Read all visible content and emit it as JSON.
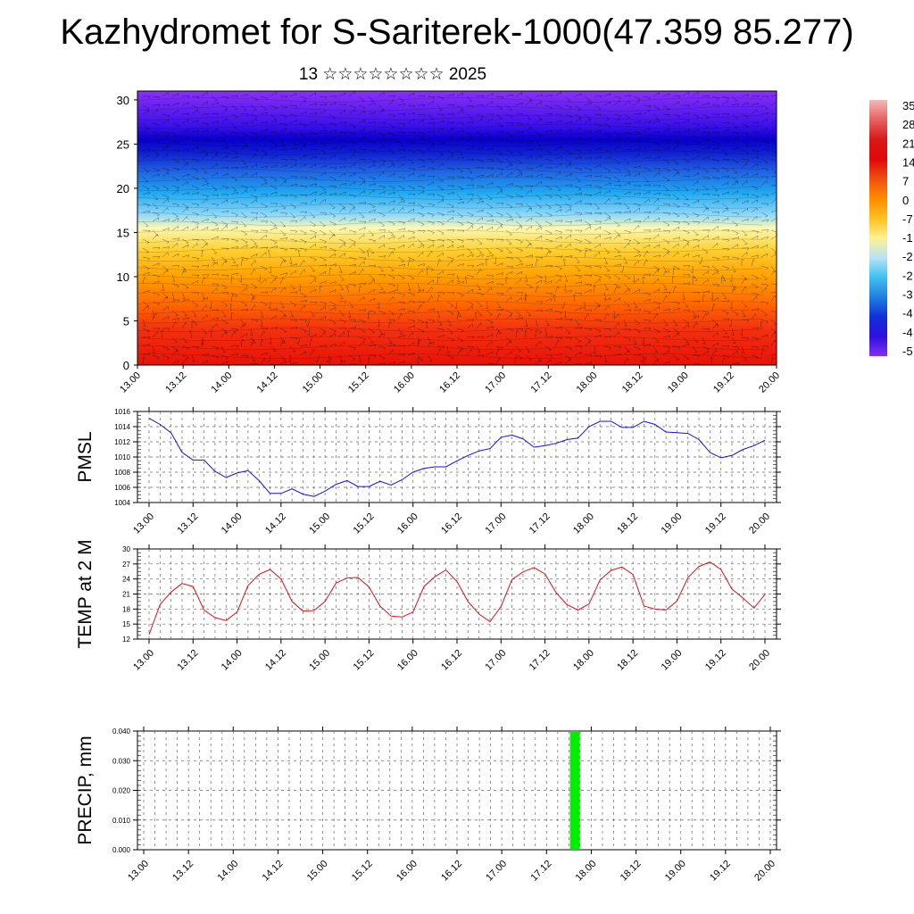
{
  "title": "Kazhydromet for S-Sariterek-1000(47.359 85.277)",
  "subtitle": "13 ☆☆☆☆☆☆☆☆ 2025",
  "colors": {
    "pmsl_line": "#1010dd",
    "temp_line": "#dd1010",
    "precip_bar": "#00ee00",
    "grid": "#555555"
  },
  "chart_data": [
    {
      "type": "heatmap",
      "description_of_variable": "",
      "x_ticks": [
        "13.00",
        "13.12",
        "14.00",
        "14.12",
        "15.00",
        "15.12",
        "16.00",
        "16.12",
        "17.00",
        "17.12",
        "18.00",
        "18.12",
        "19.00",
        "19.12",
        "20.00"
      ],
      "y_ticks": [
        "0",
        "5",
        "10",
        "15",
        "20",
        "25",
        "30"
      ],
      "ylim": [
        0,
        31
      ],
      "colorbar_labels": [
        "35",
        "28",
        "21",
        "14",
        "7",
        "0",
        "-7",
        "-1",
        "-2",
        "-2",
        "-3",
        "-4",
        "-4",
        "-5"
      ],
      "colorbar_colors": [
        "#f2b8b8",
        "#e86060",
        "#d81818",
        "#e00808",
        "#f05010",
        "#ff8c00",
        "#ffc020",
        "#fff090",
        "#b8e4f8",
        "#40c0f0",
        "#2080e0",
        "#1030d8",
        "#3010e0",
        "#8030f0"
      ],
      "bands": [
        {
          "z": 0,
          "color": "#e81208"
        },
        {
          "z": 4,
          "color": "#f23010"
        },
        {
          "z": 7,
          "color": "#ff6a00"
        },
        {
          "z": 10,
          "color": "#ffa000"
        },
        {
          "z": 13,
          "color": "#ffd030"
        },
        {
          "z": 15.5,
          "color": "#fff8b0"
        },
        {
          "z": 17,
          "color": "#90d8f8"
        },
        {
          "z": 19.5,
          "color": "#20a8f0"
        },
        {
          "z": 22,
          "color": "#2060e0"
        },
        {
          "z": 24,
          "color": "#1020d0"
        },
        {
          "z": 25.5,
          "color": "#0800c8"
        },
        {
          "z": 27,
          "color": "#3a10e8"
        },
        {
          "z": 31,
          "color": "#8a30f8"
        }
      ]
    },
    {
      "type": "line",
      "ylabel": "PMSL",
      "ylim": [
        1004,
        1016
      ],
      "y_ticks": [
        "1004",
        "1006",
        "1008",
        "1010",
        "1012",
        "1014",
        "1016"
      ],
      "x_ticks": [
        "13.00",
        "13.12",
        "14.00",
        "14.12",
        "15.00",
        "15.12",
        "16.00",
        "16.12",
        "17.00",
        "17.12",
        "18.00",
        "18.12",
        "19.00",
        "19.12",
        "20.00"
      ],
      "values": [
        1015.1,
        1014.3,
        1013.2,
        1010.6,
        1009.6,
        1009.6,
        1008.1,
        1007.3,
        1007.9,
        1008.2,
        1006.9,
        1005.2,
        1005.2,
        1005.8,
        1005.1,
        1004.8,
        1005.5,
        1006.4,
        1006.9,
        1006.1,
        1006.1,
        1006.8,
        1006.3,
        1007.0,
        1008.0,
        1008.5,
        1008.7,
        1008.7,
        1009.5,
        1010.2,
        1010.8,
        1011.1,
        1012.6,
        1012.9,
        1012.4,
        1011.3,
        1011.5,
        1011.8,
        1012.3,
        1012.5,
        1014.0,
        1014.7,
        1014.7,
        1013.9,
        1013.9,
        1014.7,
        1014.3,
        1013.3,
        1013.2,
        1013.1,
        1012.3,
        1010.6,
        1009.9,
        1010.2,
        1011.0,
        1011.5,
        1012.2
      ]
    },
    {
      "type": "line",
      "ylabel": "TEMP at 2 M",
      "ylim": [
        12,
        30
      ],
      "y_ticks": [
        "12",
        "15",
        "18",
        "21",
        "24",
        "27",
        "30"
      ],
      "x_ticks": [
        "13.00",
        "13.12",
        "14.00",
        "14.12",
        "15.00",
        "15.12",
        "16.00",
        "16.12",
        "17.00",
        "17.12",
        "18.00",
        "18.12",
        "19.00",
        "19.12",
        "20.00"
      ],
      "values": [
        12.9,
        18.9,
        21.4,
        23.1,
        22.5,
        17.8,
        16.3,
        15.7,
        17.4,
        22.7,
        24.9,
        25.9,
        24.0,
        19.5,
        17.6,
        17.7,
        19.5,
        23.2,
        24.2,
        24.3,
        22.4,
        18.6,
        16.6,
        16.4,
        17.4,
        22.5,
        24.5,
        25.8,
        23.5,
        19.5,
        17.0,
        15.5,
        18.5,
        23.9,
        25.4,
        26.3,
        25.0,
        21.3,
        18.9,
        17.8,
        19.0,
        23.8,
        25.7,
        26.4,
        24.9,
        18.6,
        18.0,
        17.8,
        19.6,
        24.3,
        26.5,
        27.4,
        25.9,
        22.0,
        20.2,
        18.2,
        20.9
      ]
    },
    {
      "type": "bar",
      "ylabel": "PRECIP, mm",
      "ylim": [
        0,
        0.04
      ],
      "y_ticks": [
        "0.000",
        "0.010",
        "0.020",
        "0.030",
        "0.040"
      ],
      "x_ticks": [
        "13.00",
        "13.12",
        "14.00",
        "14.12",
        "15.00",
        "15.12",
        "16.00",
        "16.12",
        "17.00",
        "17.12",
        "18.00",
        "18.12",
        "19.00",
        "19.12",
        "20.00"
      ],
      "bars": [
        {
          "x": 38.5,
          "value": 0.04
        }
      ]
    }
  ]
}
